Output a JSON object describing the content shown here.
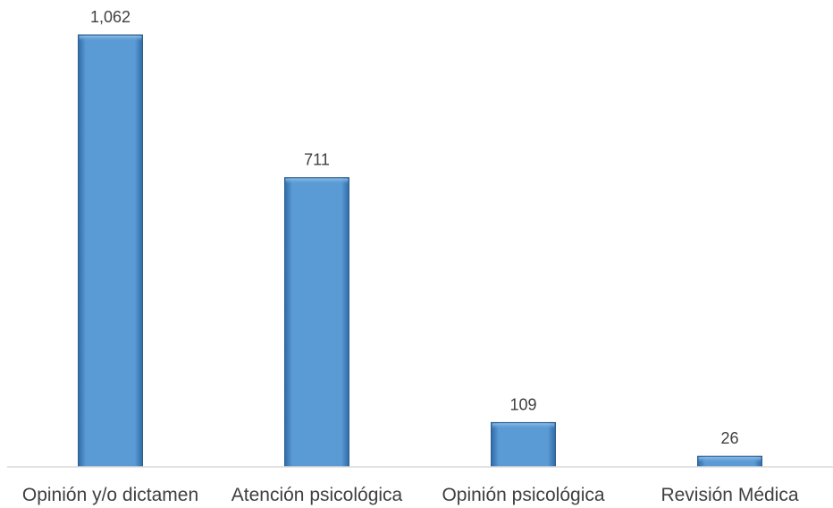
{
  "chart_data": {
    "type": "bar",
    "categories": [
      "Opinión y/o dictamen",
      "Atención psicológica",
      "Opinión psicológica",
      "Revisión Médica"
    ],
    "values": [
      1062,
      711,
      109,
      26
    ],
    "value_labels": [
      "1,062",
      "711",
      "109",
      "26"
    ],
    "title": "",
    "xlabel": "",
    "ylabel": "",
    "ylim": [
      0,
      1062
    ],
    "grid": false,
    "legend": "none",
    "bar_color": "#5B9BD5",
    "bar_edge_color": "#2E5F8A",
    "axis_color": "#D9D9D9",
    "label_color": "#404040"
  }
}
